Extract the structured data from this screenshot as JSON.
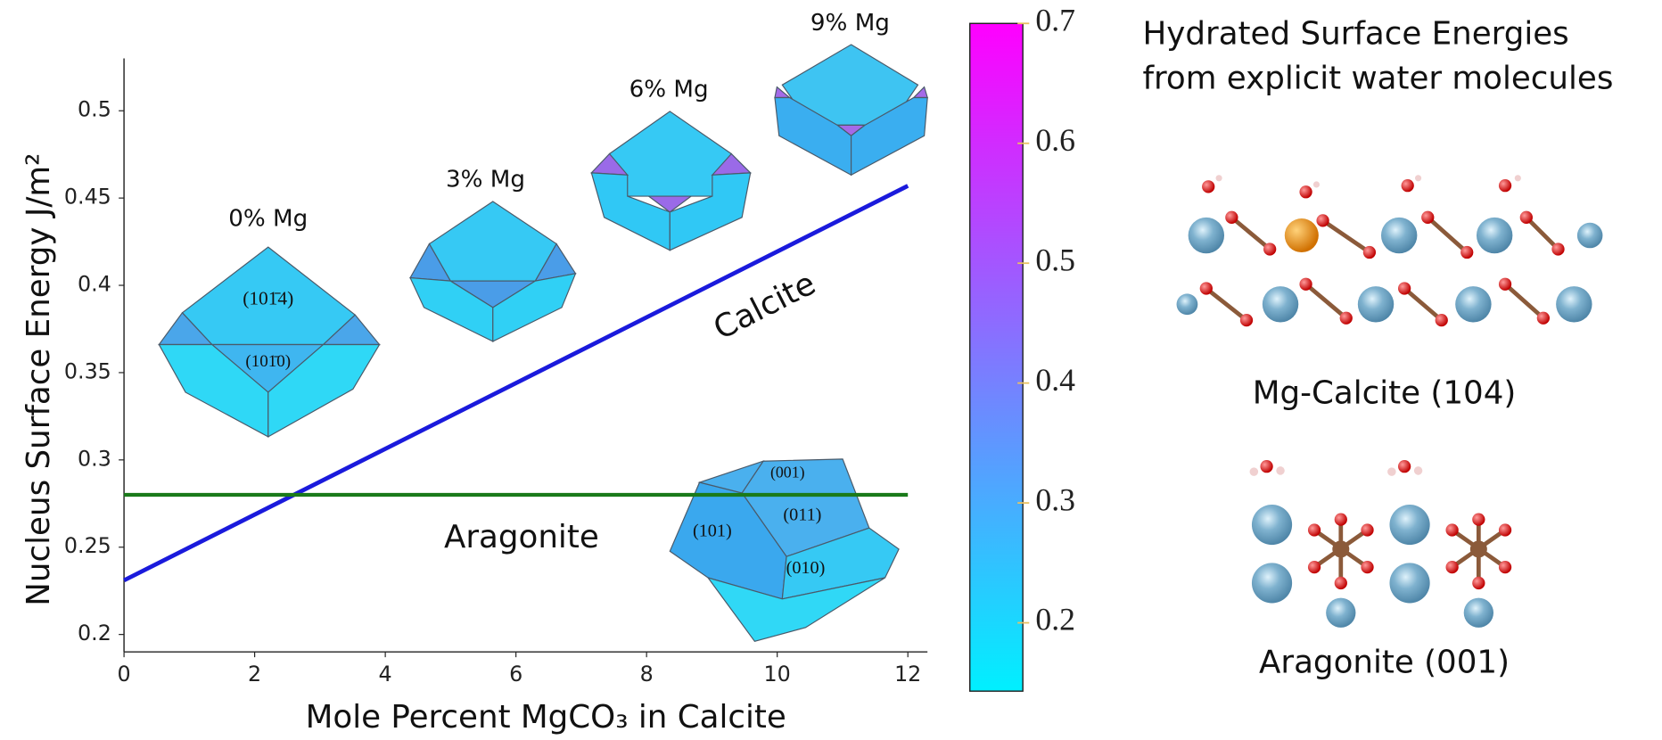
{
  "chart_data": {
    "type": "line",
    "x_label": "Mole Percent MgCO₃ in Calcite",
    "y_label": "Nucleus Surface Energy J/m²",
    "x": [
      0,
      12
    ],
    "series": [
      {
        "name": "Calcite",
        "color": "#1a1adc",
        "values": [
          0.231,
          0.457
        ]
      },
      {
        "name": "Aragonite",
        "color": "#1a7a1a",
        "values": [
          0.28,
          0.28
        ]
      }
    ],
    "xlim": [
      0,
      12.3
    ],
    "xticks": [
      0,
      2,
      4,
      6,
      8,
      10,
      12
    ],
    "ylim": [
      0.19,
      0.53
    ],
    "yticks": [
      0.2,
      0.25,
      0.3,
      0.35,
      0.4,
      0.45,
      0.5
    ],
    "annotations": [
      "0% Mg",
      "3% Mg",
      "6% Mg",
      "9% Mg",
      "(101̄4)",
      "(101̄0)",
      "(001)",
      "(011)",
      "(101)",
      "(010)"
    ],
    "colorbar": {
      "lim": [
        0.143,
        0.7
      ],
      "ticks": [
        0.2,
        0.3,
        0.4,
        0.5,
        0.6,
        0.7
      ],
      "colors": [
        "#00f0ff",
        "#ff00ff"
      ]
    }
  },
  "side_panel": {
    "title": [
      "Hydrated Surface Energies",
      "from explicit water molecules"
    ],
    "captions": [
      "Mg-Calcite (104)",
      "Aragonite (001)"
    ]
  }
}
